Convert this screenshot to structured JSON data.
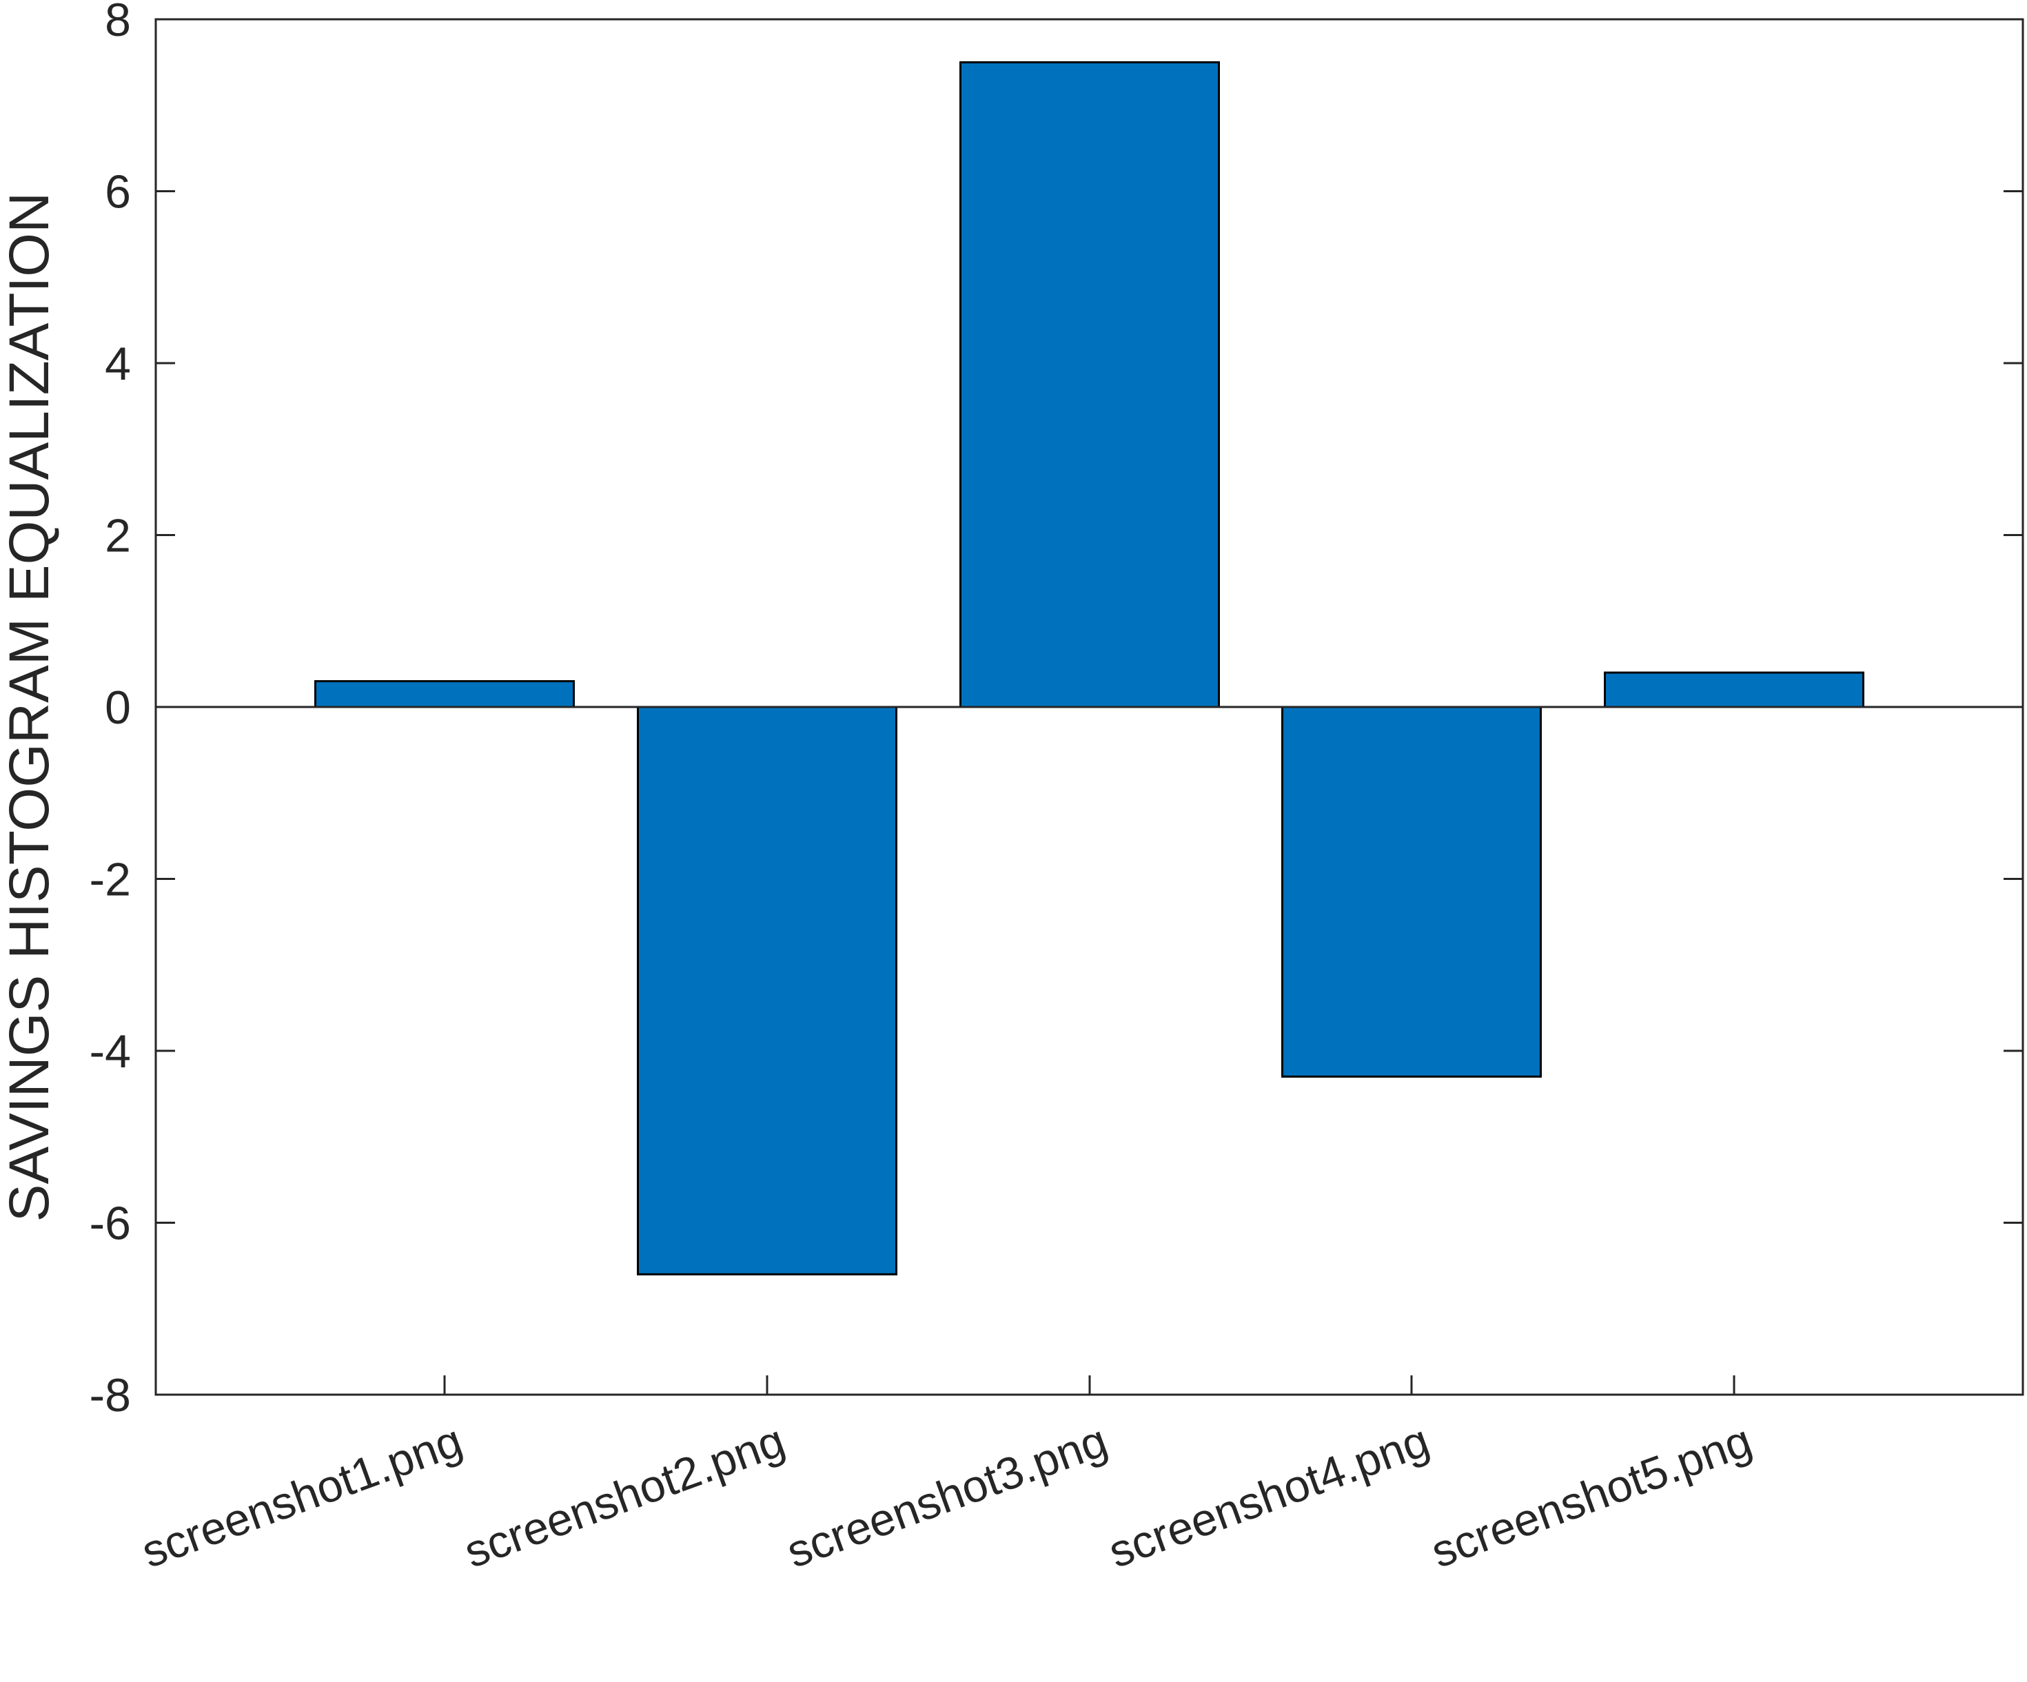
{
  "chart_data": {
    "type": "bar",
    "title": "",
    "xlabel": "",
    "ylabel": "SAVINGS HISTOGRAM EQUALIZATION",
    "categories": [
      "screenshot1.png",
      "screenshot2.png",
      "screenshot3.png",
      "screenshot4.png",
      "screenshot5.png"
    ],
    "values": [
      0.3,
      -6.6,
      7.5,
      -4.3,
      0.4
    ],
    "ylim": [
      -8,
      8
    ],
    "yticks": [
      -8,
      -6,
      -4,
      -2,
      0,
      2,
      4,
      6,
      8
    ],
    "ytick_labels": [
      "-8",
      "-6",
      "-4",
      "-2",
      "0",
      "2",
      "4",
      "6",
      "8"
    ],
    "grid": false,
    "legend": "none",
    "bar_color": "#0072BD",
    "bar_edge_color": "#000000",
    "axis_color": "#262626"
  }
}
